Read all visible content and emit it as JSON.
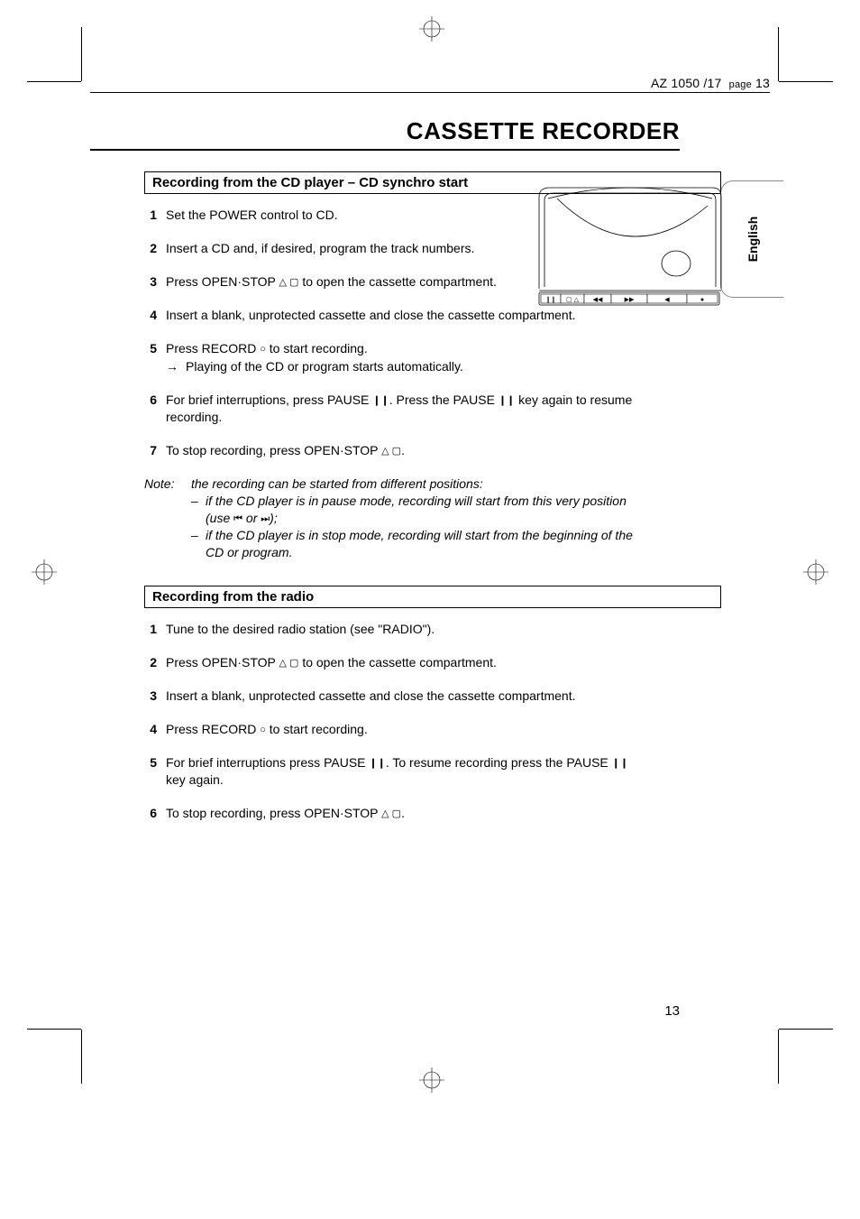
{
  "running_head": {
    "model": "AZ 1050 /17",
    "page_label": "page",
    "page_num": "13"
  },
  "page_title": "CASSETTE RECORDER",
  "lang_tab": "English",
  "footer_page": "13",
  "symbols": {
    "openstop": "△ ▢",
    "record": "○",
    "pause": "❙❙",
    "prev": "⏮",
    "next": "⏭",
    "arrow": "→"
  },
  "section1": {
    "title": "Recording from the CD player – CD synchro start",
    "steps": [
      {
        "n": "1",
        "text": "Set the POWER control to CD."
      },
      {
        "n": "2",
        "text": "Insert a CD and, if desired, program the track numbers."
      },
      {
        "n": "3",
        "pre": "Press OPEN·STOP ",
        "sym": "openstop",
        "post": " to open the cassette compartment."
      },
      {
        "n": "4",
        "text": "Insert a blank, unprotected cassette and close the cassette compartment."
      },
      {
        "n": "5",
        "pre": "Press RECORD ",
        "sym": "record",
        "post": " to start recording.",
        "sub": "Playing of the CD or program starts automatically."
      },
      {
        "n": "6",
        "pre": "For brief interruptions, press PAUSE ",
        "sym": "pause",
        "mid": ". Press the PAUSE ",
        "sym2": "pause",
        "post": " key again to resume recording."
      },
      {
        "n": "7",
        "pre": "To stop recording, press OPEN·STOP ",
        "sym": "openstop",
        "post": "."
      }
    ],
    "note": {
      "label": "Note:",
      "intro": "the recording can be started from different positions:",
      "items": [
        {
          "pre": "if the CD player is in pause mode, recording will start from this very position (use ",
          "sym1": "prev",
          "mid": " or ",
          "sym2": "next",
          "post": ");"
        },
        {
          "text": "if the CD player is in stop mode, recording will start from the beginning of the CD or program."
        }
      ]
    }
  },
  "section2": {
    "title": "Recording from the radio",
    "steps": [
      {
        "n": "1",
        "text": "Tune to the desired radio station (see \"RADIO\")."
      },
      {
        "n": "2",
        "pre": "Press OPEN·STOP ",
        "sym": "openstop",
        "post": " to open the cassette compartment."
      },
      {
        "n": "3",
        "text": "Insert a blank, unprotected cassette and close the cassette compartment."
      },
      {
        "n": "4",
        "pre": "Press RECORD ",
        "sym": "record",
        "post": " to start recording."
      },
      {
        "n": "5",
        "pre": "For brief interruptions press PAUSE ",
        "sym": "pause",
        "mid": ". To resume recording press the PAUSE ",
        "sym2": "pause",
        "post": " key again."
      },
      {
        "n": "6",
        "pre": "To stop recording, press OPEN·STOP ",
        "sym": "openstop",
        "post": "."
      }
    ]
  },
  "illustration": {
    "cassette_buttons": [
      "❙❙",
      "▢△",
      "⏪",
      "⏩",
      "◀",
      "●"
    ]
  }
}
